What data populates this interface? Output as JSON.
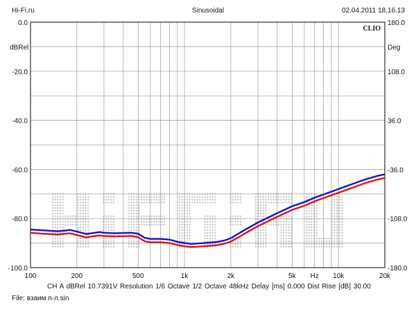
{
  "header": {
    "left": "Hi-Fi.ru",
    "center": "Sinusoidal",
    "right": "02.04.2011 18.16.13"
  },
  "brand": "CLIO",
  "footer": {
    "info": "CH A   dBRel 10.7391V  Resolution 1/6 Octave   1/2 Octave   48kHz   Delay [ms] 0.000    Dist Rise [dB] 30.00",
    "file": "File: взаим п-л.sin"
  },
  "watermark_text": "Hi-Fi.ru",
  "chart_data": {
    "type": "line",
    "x_scale": "log",
    "xlim": [
      100,
      20000
    ],
    "ylim": [
      -100,
      0
    ],
    "y2lim": [
      -180,
      180
    ],
    "ylabel": "dBRel",
    "y2label": "Deg",
    "x_ticks": [
      {
        "v": 100,
        "label": "100"
      },
      {
        "v": 200,
        "label": "200"
      },
      {
        "v": 500,
        "label": "500"
      },
      {
        "v": 1000,
        "label": "1k"
      },
      {
        "v": 2000,
        "label": "2k"
      },
      {
        "v": 5000,
        "label": "5k"
      },
      {
        "v": 7000,
        "label": "Hz"
      },
      {
        "v": 10000,
        "label": "10k"
      },
      {
        "v": 20000,
        "label": "20k"
      }
    ],
    "y_ticks": [
      {
        "v": 0,
        "label": "0.0"
      },
      {
        "v": -20,
        "label": "-20.0"
      },
      {
        "v": -40,
        "label": "-40.0"
      },
      {
        "v": -60,
        "label": "-60.0"
      },
      {
        "v": -80,
        "label": "-80.0"
      },
      {
        "v": -100,
        "label": "-100.0"
      }
    ],
    "y2_ticks": [
      {
        "v": 180,
        "label": "180.0"
      },
      {
        "v": 108,
        "label": "108.0"
      },
      {
        "v": 36,
        "label": "36.0"
      },
      {
        "v": -36,
        "label": "-36.0"
      },
      {
        "v": -108,
        "label": "-108.0"
      },
      {
        "v": -180,
        "label": "-180.0"
      }
    ],
    "grid": true,
    "series": [
      {
        "color": "#1010d0",
        "x": [
          100,
          120,
          150,
          170,
          180,
          200,
          230,
          250,
          280,
          300,
          350,
          400,
          450,
          500,
          550,
          600,
          700,
          800,
          900,
          1000,
          1100,
          1200,
          1400,
          1600,
          1800,
          2000,
          2500,
          3000,
          4000,
          5000,
          6000,
          7000,
          8000,
          10000,
          12000,
          15000,
          18000,
          20000
        ],
        "y": [
          -84.5,
          -84.8,
          -85.2,
          -84.9,
          -84.6,
          -85.3,
          -86.3,
          -86.0,
          -85.5,
          -85.8,
          -86.0,
          -85.9,
          -85.8,
          -86.2,
          -87.8,
          -88.3,
          -88.3,
          -88.6,
          -89.5,
          -90.0,
          -90.3,
          -90.2,
          -89.9,
          -89.6,
          -89.0,
          -88.0,
          -84.4,
          -81.6,
          -77.8,
          -75.0,
          -73.3,
          -71.5,
          -70.2,
          -68.0,
          -66.2,
          -64.0,
          -62.6,
          -62.0
        ]
      },
      {
        "color": "#e01010",
        "x": [
          100,
          120,
          150,
          170,
          180,
          200,
          230,
          250,
          280,
          300,
          350,
          400,
          450,
          500,
          550,
          600,
          700,
          800,
          900,
          1000,
          1100,
          1200,
          1400,
          1600,
          1800,
          2000,
          2500,
          3000,
          4000,
          5000,
          6000,
          7000,
          8000,
          10000,
          12000,
          15000,
          18000,
          20000
        ],
        "y": [
          -85.8,
          -86.2,
          -86.5,
          -86.2,
          -86.0,
          -86.7,
          -87.7,
          -87.3,
          -86.9,
          -87.1,
          -87.3,
          -87.2,
          -87.1,
          -87.6,
          -89.2,
          -89.7,
          -89.7,
          -90.0,
          -90.8,
          -91.3,
          -91.6,
          -91.5,
          -91.2,
          -90.9,
          -90.3,
          -89.4,
          -85.9,
          -83.1,
          -79.3,
          -76.5,
          -74.8,
          -73.0,
          -71.7,
          -69.5,
          -67.7,
          -65.5,
          -64.1,
          -63.5
        ]
      }
    ]
  }
}
